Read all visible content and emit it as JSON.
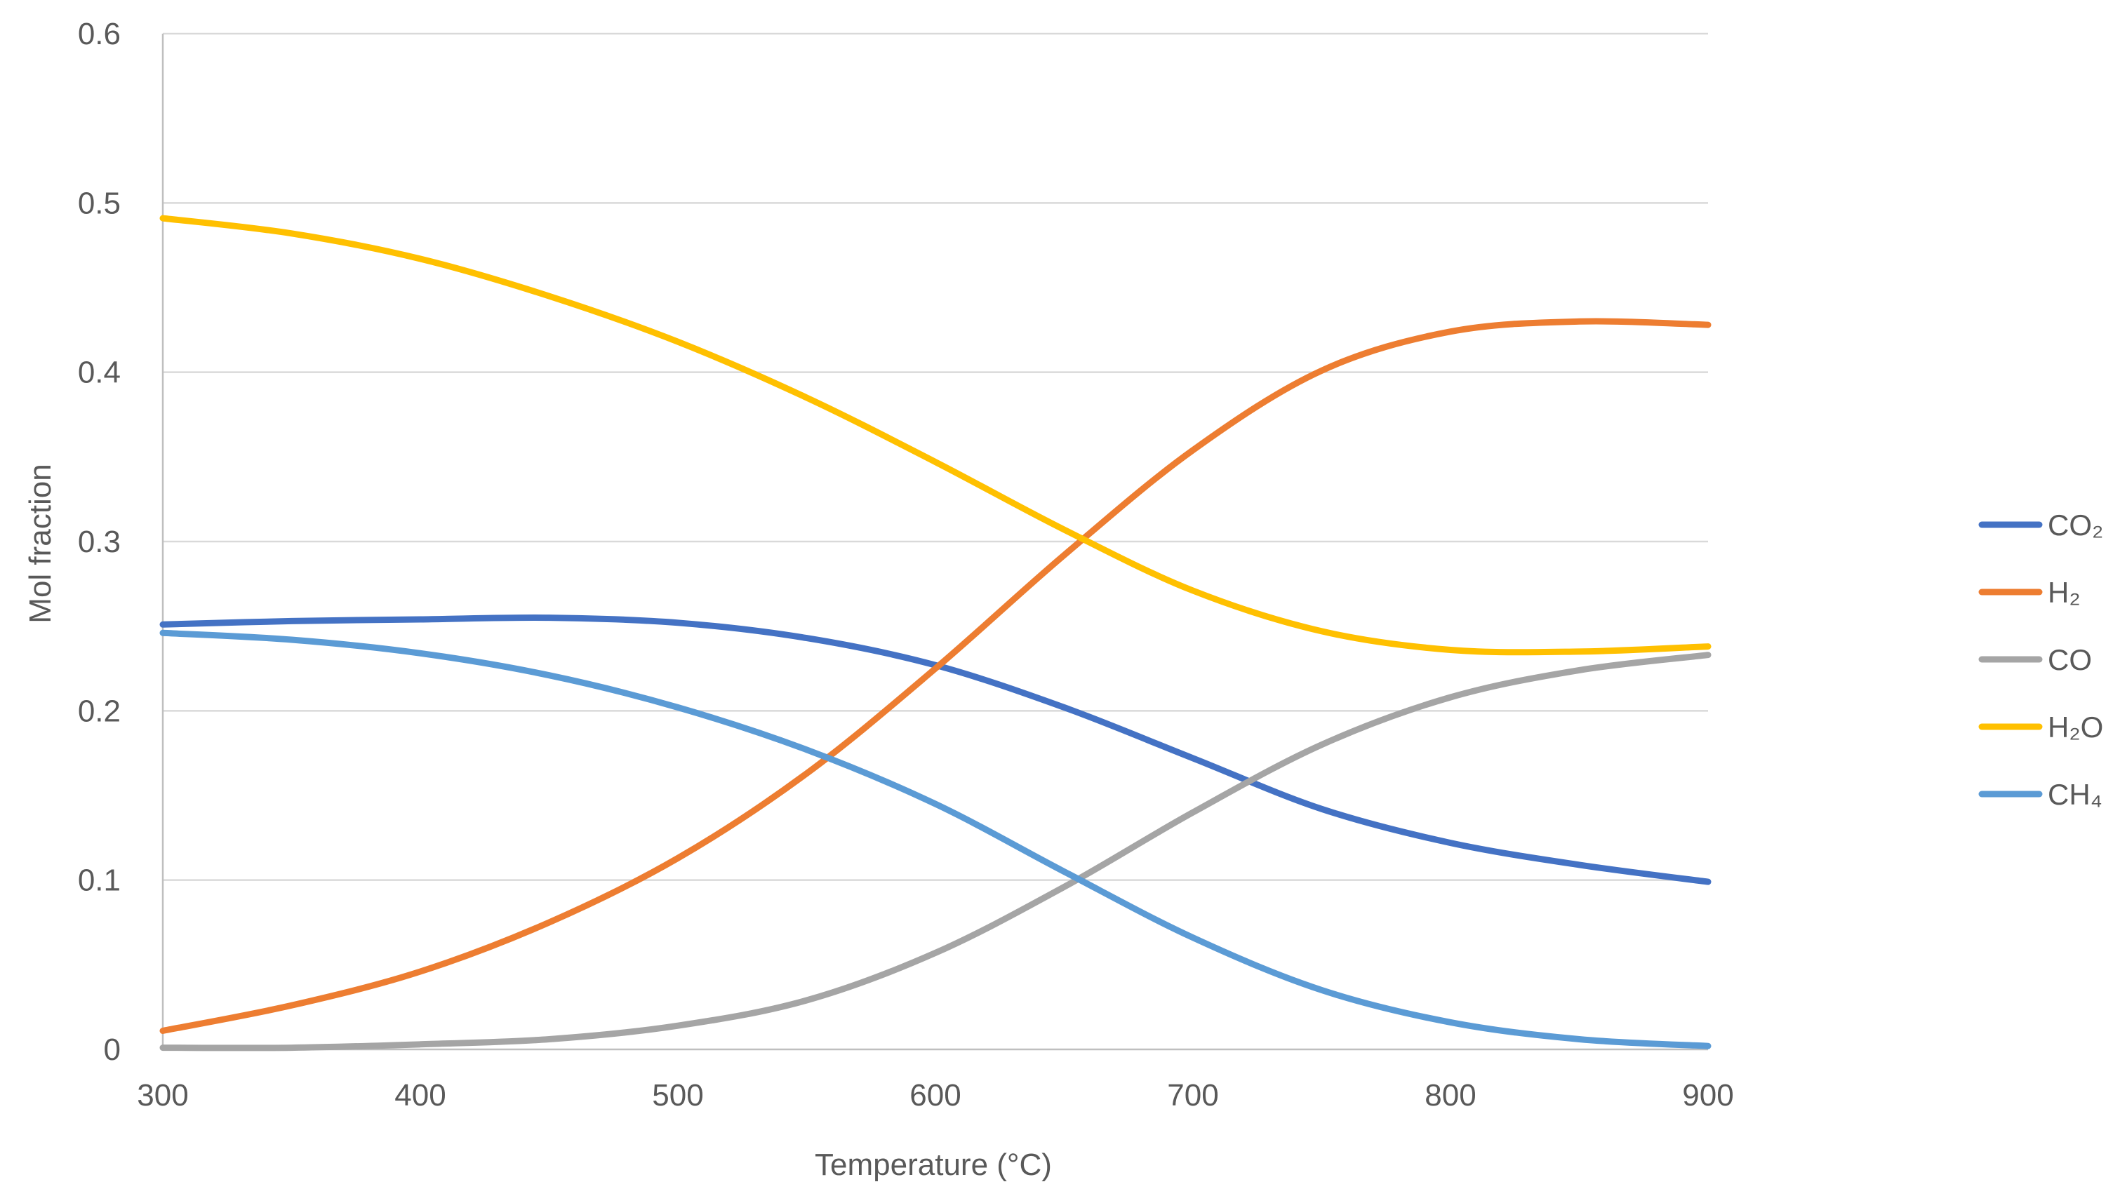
{
  "chart_data": {
    "type": "line",
    "title": "",
    "xlabel": "Temperature (°C)",
    "ylabel": "Mol fraction",
    "xlim": [
      300,
      900
    ],
    "ylim": [
      0,
      0.6
    ],
    "x_ticks": [
      300,
      400,
      500,
      600,
      700,
      800,
      900
    ],
    "y_ticks": [
      0,
      0.1,
      0.2,
      0.3,
      0.4,
      0.5,
      0.6
    ],
    "x_tick_labels": [
      "300",
      "400",
      "500",
      "600",
      "700",
      "800",
      "900"
    ],
    "y_tick_labels": [
      "0",
      "0.1",
      "0.2",
      "0.3",
      "0.4",
      "0.5",
      "0.6"
    ],
    "grid": "horizontal",
    "legend_position": "right",
    "x": [
      300,
      350,
      400,
      450,
      500,
      550,
      600,
      650,
      700,
      750,
      800,
      850,
      900
    ],
    "series": [
      {
        "name": "CO₂",
        "color": "#4472c4",
        "values": [
          0.251,
          0.253,
          0.254,
          0.255,
          0.252,
          0.243,
          0.227,
          0.202,
          0.172,
          0.142,
          0.122,
          0.109,
          0.099
        ]
      },
      {
        "name": "H₂",
        "color": "#ed7d31",
        "values": [
          0.011,
          0.026,
          0.046,
          0.075,
          0.113,
          0.163,
          0.225,
          0.292,
          0.354,
          0.401,
          0.424,
          0.43,
          0.428
        ]
      },
      {
        "name": "CO",
        "color": "#a5a5a5",
        "values": [
          0.001,
          0.001,
          0.003,
          0.006,
          0.014,
          0.029,
          0.057,
          0.096,
          0.14,
          0.18,
          0.208,
          0.224,
          0.233
        ]
      },
      {
        "name": "H₂O",
        "color": "#ffc000",
        "values": [
          0.491,
          0.482,
          0.467,
          0.445,
          0.418,
          0.385,
          0.347,
          0.307,
          0.271,
          0.247,
          0.236,
          0.235,
          0.238
        ]
      },
      {
        "name": "CH₄",
        "color": "#5b9bd5",
        "values": [
          0.246,
          0.242,
          0.234,
          0.221,
          0.202,
          0.177,
          0.145,
          0.105,
          0.066,
          0.035,
          0.016,
          0.006,
          0.002
        ]
      }
    ]
  }
}
